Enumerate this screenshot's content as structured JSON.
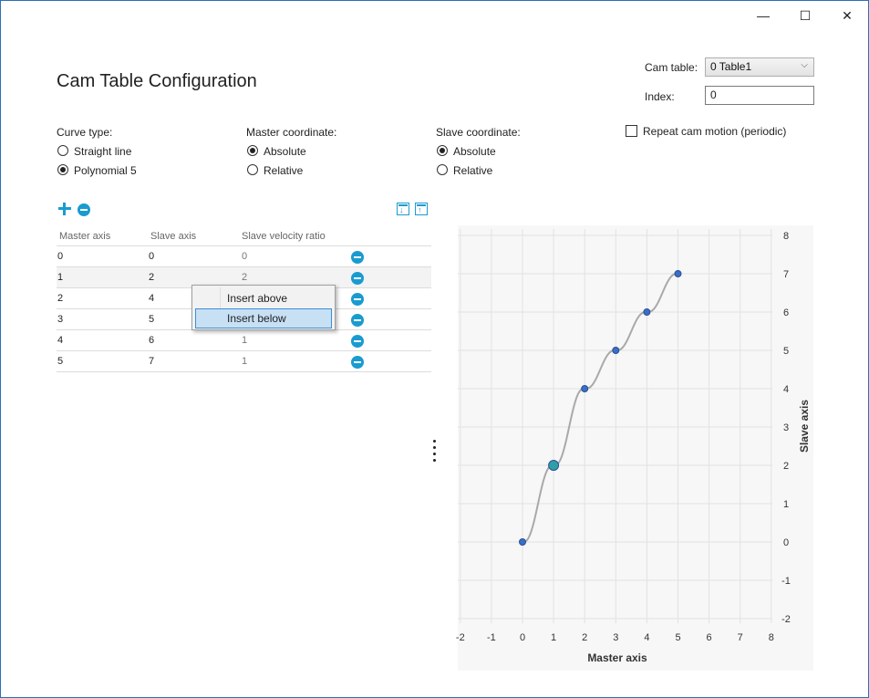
{
  "window": {
    "minimize": "—",
    "maximize": "☐",
    "close": "✕"
  },
  "page_title": "Cam Table Configuration",
  "cam_table": {
    "label": "Cam table:",
    "value": "0 Table1",
    "index_label": "Index:",
    "index_value": "0"
  },
  "repeat": {
    "label": "Repeat cam motion (periodic)",
    "checked": false
  },
  "curve_type": {
    "label": "Curve type:",
    "options": [
      "Straight line",
      "Polynomial 5"
    ],
    "selected": 1
  },
  "master_coordinate": {
    "label": "Master coordinate:",
    "options": [
      "Absolute",
      "Relative"
    ],
    "selected": 0
  },
  "slave_coordinate": {
    "label": "Slave coordinate:",
    "options": [
      "Absolute",
      "Relative"
    ],
    "selected": 0
  },
  "table": {
    "headers": [
      "Master axis",
      "Slave axis",
      "Slave velocity ratio"
    ],
    "rows": [
      {
        "master": "0",
        "slave": "0",
        "ratio": "0"
      },
      {
        "master": "1",
        "slave": "2",
        "ratio": "2"
      },
      {
        "master": "2",
        "slave": "4",
        "ratio": ""
      },
      {
        "master": "3",
        "slave": "5",
        "ratio": ""
      },
      {
        "master": "4",
        "slave": "6",
        "ratio": "1"
      },
      {
        "master": "5",
        "slave": "7",
        "ratio": "1"
      }
    ]
  },
  "context_menu": {
    "items": [
      "Insert above",
      "Insert below"
    ],
    "highlighted": 1
  },
  "colors": {
    "accent": "#1a9bd0",
    "point": "#3a6fc4",
    "curve": "#a9a9a9",
    "plot_bg": "#f7f7f7"
  },
  "chart_data": {
    "type": "line",
    "x": [
      0,
      1,
      2,
      3,
      4,
      5
    ],
    "y": [
      0,
      2,
      4,
      5,
      6,
      7
    ],
    "selected_index": 1,
    "xlabel": "Master axis",
    "ylabel": "Slave axis",
    "xlim": [
      -2,
      8
    ],
    "ylim": [
      -2,
      8
    ],
    "xticks": [
      -2,
      -1,
      0,
      1,
      2,
      3,
      4,
      5,
      6,
      7,
      8
    ],
    "yticks": [
      -2,
      -1,
      0,
      1,
      2,
      3,
      4,
      5,
      6,
      7,
      8
    ],
    "grid": true,
    "curve": "polynomial-5"
  }
}
